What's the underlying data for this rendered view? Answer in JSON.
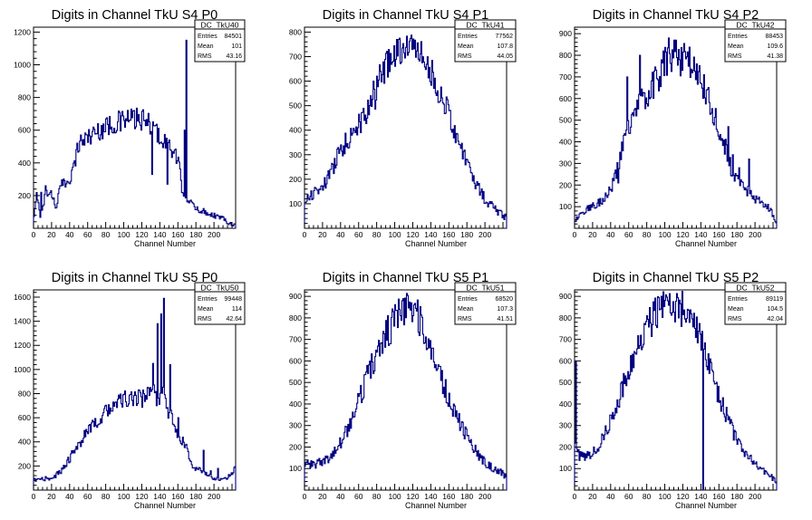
{
  "chart_data": [
    {
      "type": "histogram",
      "title": "Digits in Channel TkU S4 P0",
      "xlabel": "Channel Number",
      "xlim": [
        0,
        224
      ],
      "ylim": [
        0,
        1230
      ],
      "x_ticks": [
        0,
        20,
        40,
        60,
        80,
        100,
        120,
        140,
        160,
        180,
        200
      ],
      "y_ticks": [
        200,
        400,
        600,
        800,
        1000,
        1200
      ],
      "stats": {
        "name": "DC_TkU40",
        "entries": "84501",
        "mean": "101",
        "rms": "43.16"
      },
      "profile": [
        [
          0,
          40
        ],
        [
          4,
          220
        ],
        [
          8,
          60
        ],
        [
          14,
          230
        ],
        [
          20,
          210
        ],
        [
          25,
          130
        ],
        [
          30,
          260
        ],
        [
          36,
          280
        ],
        [
          40,
          300
        ],
        [
          45,
          380
        ],
        [
          50,
          520
        ],
        [
          60,
          560
        ],
        [
          70,
          590
        ],
        [
          80,
          620
        ],
        [
          90,
          640
        ],
        [
          100,
          660
        ],
        [
          110,
          670
        ],
        [
          120,
          660
        ],
        [
          130,
          630
        ],
        [
          140,
          560
        ],
        [
          150,
          500
        ],
        [
          160,
          420
        ],
        [
          165,
          230
        ],
        [
          170,
          180
        ],
        [
          180,
          120
        ],
        [
          190,
          100
        ],
        [
          200,
          80
        ],
        [
          210,
          60
        ],
        [
          218,
          30
        ],
        [
          224,
          20
        ]
      ],
      "spikes": [
        [
          8,
          220
        ],
        [
          13,
          260
        ],
        [
          131,
          330
        ],
        [
          148,
          270
        ],
        [
          167,
          600
        ],
        [
          169,
          1150
        ]
      ]
    },
    {
      "type": "histogram",
      "title": "Digits in Channel TkU S4 P1",
      "xlabel": "Channel Number",
      "xlim": [
        0,
        224
      ],
      "ylim": [
        0,
        820
      ],
      "x_ticks": [
        0,
        20,
        40,
        60,
        80,
        100,
        120,
        140,
        160,
        180,
        200
      ],
      "y_ticks": [
        100,
        200,
        300,
        400,
        500,
        600,
        700,
        800
      ],
      "stats": {
        "name": "DC_TkU41",
        "entries": "77562",
        "mean": "107.8",
        "rms": "44.05"
      },
      "profile": [
        [
          0,
          100
        ],
        [
          5,
          130
        ],
        [
          10,
          140
        ],
        [
          20,
          170
        ],
        [
          30,
          230
        ],
        [
          40,
          320
        ],
        [
          50,
          370
        ],
        [
          60,
          430
        ],
        [
          70,
          480
        ],
        [
          80,
          540
        ],
        [
          85,
          630
        ],
        [
          90,
          660
        ],
        [
          100,
          700
        ],
        [
          110,
          730
        ],
        [
          120,
          740
        ],
        [
          130,
          700
        ],
        [
          140,
          640
        ],
        [
          150,
          560
        ],
        [
          160,
          460
        ],
        [
          170,
          370
        ],
        [
          180,
          270
        ],
        [
          190,
          180
        ],
        [
          200,
          120
        ],
        [
          210,
          80
        ],
        [
          218,
          60
        ],
        [
          224,
          40
        ]
      ],
      "spikes": [
        [
          50,
          350
        ],
        [
          56,
          390
        ],
        [
          59,
          410
        ],
        [
          62,
          390
        ],
        [
          66,
          440
        ],
        [
          72,
          500
        ],
        [
          76,
          600
        ],
        [
          80,
          620
        ],
        [
          84,
          640
        ],
        [
          102,
          770
        ]
      ]
    },
    {
      "type": "histogram",
      "title": "Digits in Channel TkU S4 P2",
      "xlabel": "Channel Number",
      "xlim": [
        0,
        224
      ],
      "ylim": [
        0,
        930
      ],
      "x_ticks": [
        0,
        20,
        40,
        60,
        80,
        100,
        120,
        140,
        160,
        180,
        200
      ],
      "y_ticks": [
        100,
        200,
        300,
        400,
        500,
        600,
        700,
        800,
        900
      ],
      "stats": {
        "name": "DC_TkU42",
        "entries": "88453",
        "mean": "109.6",
        "rms": "41.38"
      },
      "profile": [
        [
          0,
          30
        ],
        [
          5,
          60
        ],
        [
          10,
          80
        ],
        [
          20,
          100
        ],
        [
          30,
          130
        ],
        [
          40,
          180
        ],
        [
          45,
          230
        ],
        [
          50,
          320
        ],
        [
          55,
          400
        ],
        [
          60,
          480
        ],
        [
          70,
          560
        ],
        [
          80,
          620
        ],
        [
          90,
          680
        ],
        [
          100,
          760
        ],
        [
          110,
          790
        ],
        [
          120,
          780
        ],
        [
          130,
          760
        ],
        [
          140,
          680
        ],
        [
          150,
          580
        ],
        [
          160,
          460
        ],
        [
          170,
          340
        ],
        [
          175,
          250
        ],
        [
          180,
          220
        ],
        [
          190,
          180
        ],
        [
          200,
          140
        ],
        [
          210,
          110
        ],
        [
          218,
          80
        ],
        [
          224,
          20
        ]
      ],
      "spikes": [
        [
          40,
          180
        ],
        [
          48,
          210
        ],
        [
          58,
          700
        ],
        [
          72,
          800
        ],
        [
          104,
          880
        ],
        [
          112,
          870
        ],
        [
          170,
          470
        ],
        [
          175,
          340
        ],
        [
          182,
          280
        ],
        [
          193,
          320
        ]
      ]
    },
    {
      "type": "histogram",
      "title": "Digits in Channel TkU S5 P0",
      "xlabel": "Channel Number",
      "xlim": [
        0,
        224
      ],
      "ylim": [
        0,
        1660
      ],
      "x_ticks": [
        0,
        20,
        40,
        60,
        80,
        100,
        120,
        140,
        160,
        180,
        200
      ],
      "y_ticks": [
        200,
        400,
        600,
        800,
        1000,
        1200,
        1400,
        1600
      ],
      "stats": {
        "name": "DC_TkU50",
        "entries": "99448",
        "mean": "114",
        "rms": "42.64"
      },
      "profile": [
        [
          0,
          80
        ],
        [
          10,
          90
        ],
        [
          20,
          100
        ],
        [
          30,
          150
        ],
        [
          40,
          260
        ],
        [
          50,
          380
        ],
        [
          60,
          480
        ],
        [
          70,
          560
        ],
        [
          80,
          650
        ],
        [
          90,
          710
        ],
        [
          100,
          750
        ],
        [
          110,
          760
        ],
        [
          120,
          760
        ],
        [
          125,
          780
        ],
        [
          130,
          820
        ],
        [
          135,
          780
        ],
        [
          140,
          760
        ],
        [
          145,
          800
        ],
        [
          150,
          650
        ],
        [
          160,
          470
        ],
        [
          170,
          350
        ],
        [
          175,
          200
        ],
        [
          180,
          180
        ],
        [
          190,
          140
        ],
        [
          200,
          100
        ],
        [
          210,
          90
        ],
        [
          218,
          120
        ],
        [
          224,
          200
        ]
      ],
      "spikes": [
        [
          132,
          1050
        ],
        [
          137,
          1380
        ],
        [
          141,
          1460
        ],
        [
          144,
          1590
        ],
        [
          151,
          1040
        ],
        [
          160,
          600
        ],
        [
          188,
          330
        ],
        [
          196,
          160
        ],
        [
          204,
          180
        ]
      ]
    },
    {
      "type": "histogram",
      "title": "Digits in Channel TkU S5 P1",
      "xlabel": "Channel Number",
      "xlim": [
        0,
        224
      ],
      "ylim": [
        0,
        930
      ],
      "x_ticks": [
        0,
        20,
        40,
        60,
        80,
        100,
        120,
        140,
        160,
        180,
        200
      ],
      "y_ticks": [
        100,
        200,
        300,
        400,
        500,
        600,
        700,
        800,
        900
      ],
      "stats": {
        "name": "DC_TkU51",
        "entries": "68520",
        "mean": "107.3",
        "rms": "41.51"
      },
      "profile": [
        [
          0,
          120
        ],
        [
          10,
          120
        ],
        [
          20,
          130
        ],
        [
          30,
          160
        ],
        [
          40,
          220
        ],
        [
          50,
          300
        ],
        [
          60,
          410
        ],
        [
          70,
          540
        ],
        [
          80,
          630
        ],
        [
          90,
          720
        ],
        [
          100,
          790
        ],
        [
          110,
          840
        ],
        [
          115,
          850
        ],
        [
          120,
          830
        ],
        [
          130,
          780
        ],
        [
          140,
          670
        ],
        [
          150,
          540
        ],
        [
          160,
          430
        ],
        [
          170,
          330
        ],
        [
          180,
          250
        ],
        [
          190,
          180
        ],
        [
          200,
          130
        ],
        [
          210,
          100
        ],
        [
          218,
          80
        ],
        [
          224,
          60
        ]
      ],
      "spikes": [
        [
          108,
          880
        ],
        [
          118,
          870
        ]
      ]
    },
    {
      "type": "histogram",
      "title": "Digits in Channel TkU S5 P2",
      "xlabel": "Channel Number",
      "xlim": [
        0,
        224
      ],
      "ylim": [
        0,
        930
      ],
      "x_ticks": [
        0,
        20,
        40,
        60,
        80,
        100,
        120,
        140,
        160,
        180,
        200
      ],
      "y_ticks": [
        100,
        200,
        300,
        400,
        500,
        600,
        700,
        800,
        900
      ],
      "stats": {
        "name": "DC_TkU52",
        "entries": "89119",
        "mean": "104.5",
        "rms": "42.04"
      },
      "profile": [
        [
          0,
          200
        ],
        [
          5,
          160
        ],
        [
          10,
          150
        ],
        [
          20,
          170
        ],
        [
          30,
          230
        ],
        [
          40,
          320
        ],
        [
          50,
          440
        ],
        [
          60,
          560
        ],
        [
          70,
          660
        ],
        [
          80,
          750
        ],
        [
          90,
          830
        ],
        [
          100,
          880
        ],
        [
          110,
          870
        ],
        [
          120,
          840
        ],
        [
          130,
          780
        ],
        [
          140,
          690
        ],
        [
          150,
          560
        ],
        [
          160,
          440
        ],
        [
          170,
          330
        ],
        [
          180,
          230
        ],
        [
          190,
          170
        ],
        [
          200,
          120
        ],
        [
          210,
          90
        ],
        [
          218,
          60
        ],
        [
          224,
          40
        ]
      ],
      "spikes": [
        [
          1,
          600
        ],
        [
          142,
          0
        ],
        [
          96,
          900
        ]
      ]
    }
  ]
}
